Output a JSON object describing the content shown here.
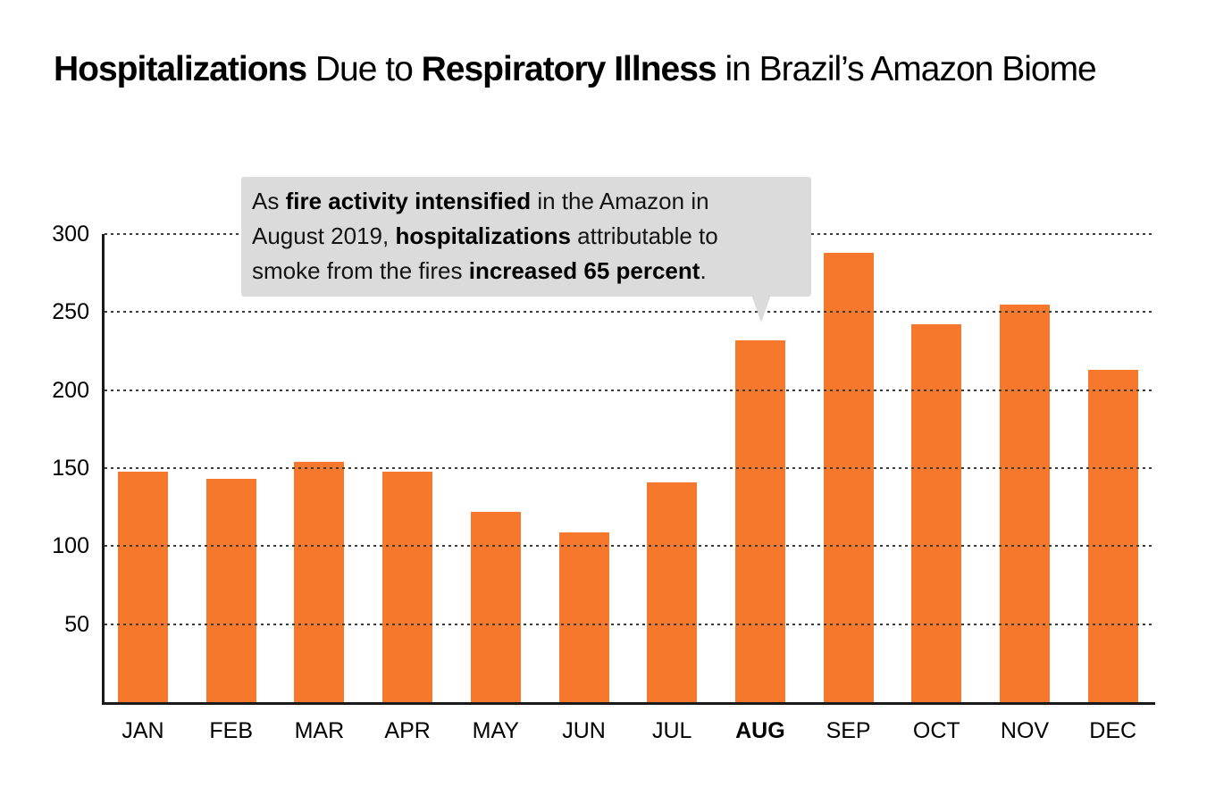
{
  "page": {
    "background": "#FFFFFF"
  },
  "title": {
    "plain": "Hospitalizations Due to Respiratory Illness in Brazil’s Amazon Biome",
    "segments": [
      {
        "text": "Hospitalizations",
        "bold": true
      },
      {
        "text": " Due to ",
        "bold": false
      },
      {
        "text": "Respiratory Illness",
        "bold": true
      },
      {
        "text": " in Brazil’s Amazon Biome",
        "bold": false
      }
    ]
  },
  "annotation": {
    "plain": "As fire activity intensified in the Amazon in August 2019, hospitalizations attributable to smoke from the fires increased 65 percent.",
    "lines": [
      [
        {
          "text": "As ",
          "bold": false
        },
        {
          "text": "fire activity intensified",
          "bold": true
        },
        {
          "text": " in the Amazon in",
          "bold": false
        }
      ],
      [
        {
          "text": "August 2019, ",
          "bold": false
        },
        {
          "text": "hospitalizations",
          "bold": true
        },
        {
          "text": " attributable to",
          "bold": false
        }
      ],
      [
        {
          "text": "smoke from the fires ",
          "bold": false
        },
        {
          "text": "increased 65 percent",
          "bold": true
        },
        {
          "text": ".",
          "bold": false
        }
      ]
    ],
    "bg_color": "#DBDBDB",
    "points_to": "AUG"
  },
  "chart_data": {
    "type": "bar",
    "title": "Hospitalizations Due to Respiratory Illness in Brazil’s Amazon Biome",
    "categories": [
      "JAN",
      "FEB",
      "MAR",
      "APR",
      "MAY",
      "JUN",
      "JUL",
      "AUG",
      "SEP",
      "OCT",
      "NOV",
      "DEC"
    ],
    "values": [
      148,
      143,
      154,
      148,
      122,
      109,
      141,
      232,
      288,
      242,
      255,
      213
    ],
    "highlighted_category": "AUG",
    "yticks": [
      50,
      100,
      150,
      200,
      250,
      300
    ],
    "ylim": [
      0,
      300
    ],
    "xlabel": "",
    "ylabel": "",
    "grid": "horizontal-dotted",
    "grid_on_top_of_bars": true,
    "legend_position": "none",
    "colors": {
      "bar": "#F6782D",
      "grid": "#3C3C3C",
      "axis": "#1A1A1A",
      "text": "#000000",
      "annotation_bg": "#DBDBDB"
    }
  }
}
